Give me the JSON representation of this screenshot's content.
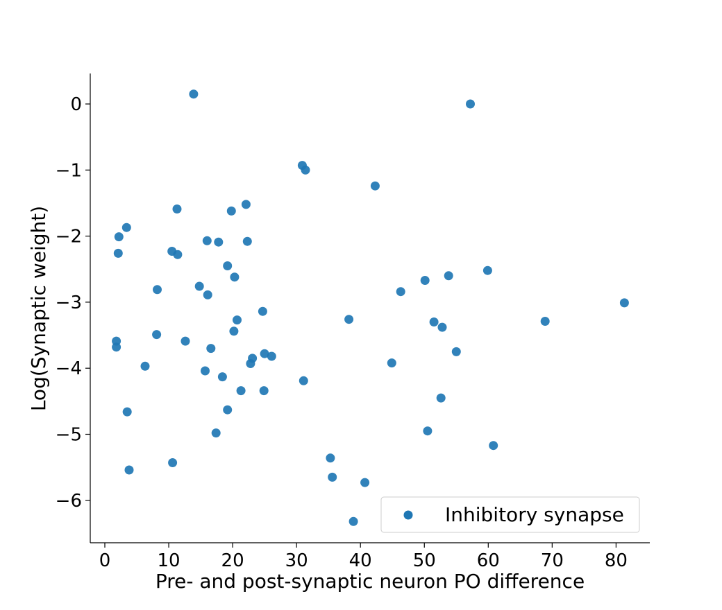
{
  "chart_data": {
    "type": "scatter",
    "title": "",
    "xlabel": "Pre- and post-synaptic neuron PO difference",
    "ylabel": "Log(Synaptic weight)",
    "xlim": [
      -2,
      85
    ],
    "ylim": [
      -6.65,
      0.45
    ],
    "xticks": [
      0,
      10,
      20,
      30,
      40,
      50,
      60,
      70,
      80
    ],
    "xtick_labels": [
      "0",
      "10",
      "20",
      "30",
      "40",
      "50",
      "60",
      "70",
      "80"
    ],
    "yticks": [
      0,
      -1,
      -2,
      -3,
      -4,
      -5,
      -6
    ],
    "ytick_labels": [
      "0",
      "−1",
      "−2",
      "−3",
      "−4",
      "−5",
      "−6"
    ],
    "grid": false,
    "legend_position": "lower-right",
    "marker_color": "#1f77b4",
    "series": [
      {
        "name": "Inhibitory synapse",
        "points": [
          [
            13.9,
            0.15
          ],
          [
            57.2,
            0.0
          ],
          [
            30.9,
            -0.93
          ],
          [
            31.4,
            -1.0
          ],
          [
            42.3,
            -1.24
          ],
          [
            11.3,
            -1.59
          ],
          [
            19.8,
            -1.62
          ],
          [
            22.1,
            -1.52
          ],
          [
            3.4,
            -1.87
          ],
          [
            2.2,
            -2.01
          ],
          [
            2.1,
            -2.26
          ],
          [
            10.5,
            -2.23
          ],
          [
            11.4,
            -2.28
          ],
          [
            16.0,
            -2.07
          ],
          [
            17.8,
            -2.09
          ],
          [
            22.3,
            -2.08
          ],
          [
            19.2,
            -2.45
          ],
          [
            20.3,
            -2.62
          ],
          [
            59.9,
            -2.52
          ],
          [
            53.8,
            -2.6
          ],
          [
            50.1,
            -2.67
          ],
          [
            8.2,
            -2.81
          ],
          [
            14.8,
            -2.76
          ],
          [
            16.1,
            -2.89
          ],
          [
            46.3,
            -2.84
          ],
          [
            24.7,
            -3.14
          ],
          [
            20.7,
            -3.27
          ],
          [
            38.2,
            -3.26
          ],
          [
            51.5,
            -3.3
          ],
          [
            52.8,
            -3.38
          ],
          [
            68.9,
            -3.29
          ],
          [
            81.3,
            -3.01
          ],
          [
            20.2,
            -3.44
          ],
          [
            1.8,
            -3.59
          ],
          [
            1.8,
            -3.68
          ],
          [
            8.1,
            -3.49
          ],
          [
            12.6,
            -3.59
          ],
          [
            16.6,
            -3.7
          ],
          [
            25.0,
            -3.78
          ],
          [
            26.1,
            -3.82
          ],
          [
            23.1,
            -3.85
          ],
          [
            22.8,
            -3.93
          ],
          [
            55.0,
            -3.75
          ],
          [
            6.3,
            -3.97
          ],
          [
            44.9,
            -3.92
          ],
          [
            15.7,
            -4.04
          ],
          [
            18.4,
            -4.13
          ],
          [
            31.1,
            -4.19
          ],
          [
            21.3,
            -4.34
          ],
          [
            24.9,
            -4.34
          ],
          [
            52.6,
            -4.45
          ],
          [
            3.5,
            -4.66
          ],
          [
            19.2,
            -4.63
          ],
          [
            17.4,
            -4.98
          ],
          [
            50.5,
            -4.95
          ],
          [
            60.8,
            -5.17
          ],
          [
            10.6,
            -5.43
          ],
          [
            3.8,
            -5.54
          ],
          [
            35.3,
            -5.36
          ],
          [
            35.6,
            -5.65
          ],
          [
            40.7,
            -5.73
          ],
          [
            38.9,
            -6.32
          ]
        ]
      }
    ]
  }
}
